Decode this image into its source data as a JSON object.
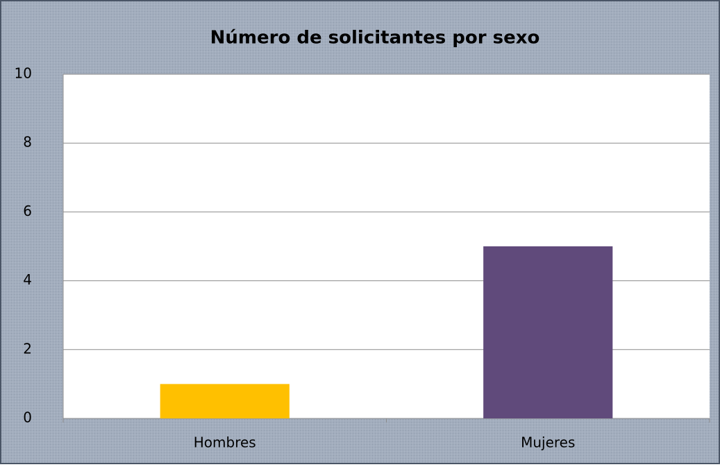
{
  "chart_data": {
    "type": "bar",
    "title": "Número de solicitantes por sexo",
    "categories": [
      "Hombres",
      "Mujeres"
    ],
    "values": [
      1,
      5
    ],
    "colors": [
      "#ffc000",
      "#604a7b"
    ],
    "ylim": [
      0,
      10
    ],
    "yticks": [
      0,
      2,
      4,
      6,
      8,
      10
    ],
    "grid": true
  }
}
